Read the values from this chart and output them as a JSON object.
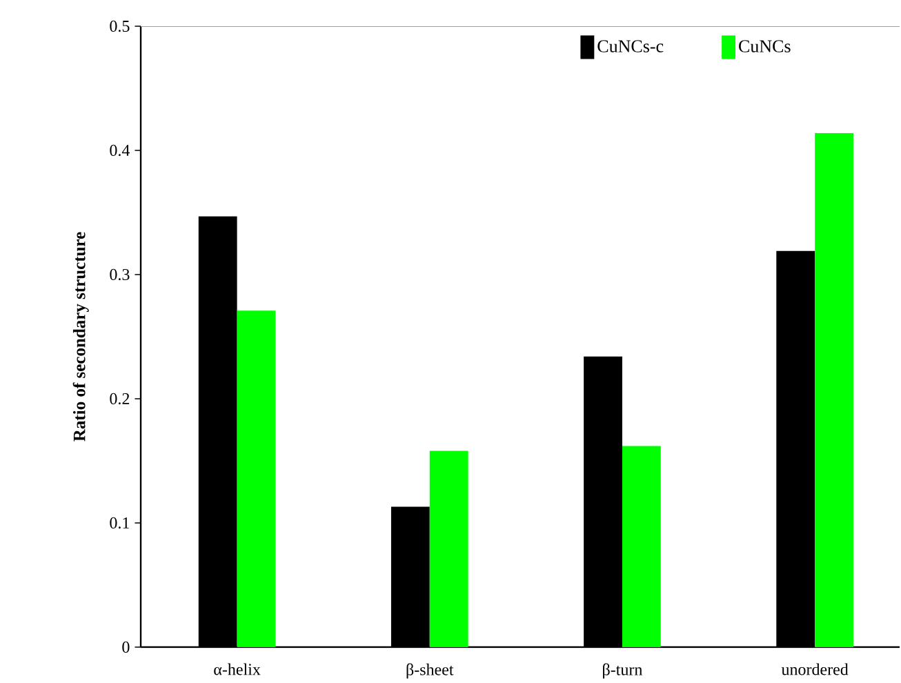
{
  "chart_data": {
    "type": "bar",
    "ylabel": "Ratio of secondary structure",
    "categories": [
      "α-helix",
      "β-sheet",
      "β-turn",
      "unordered"
    ],
    "series": [
      {
        "name": "CuNCs-c",
        "color": "#000000",
        "values": [
          0.347,
          0.113,
          0.234,
          0.319
        ]
      },
      {
        "name": "CuNCs",
        "color": "#00ff00",
        "values": [
          0.271,
          0.158,
          0.162,
          0.414
        ]
      }
    ],
    "ylim": [
      0,
      0.5
    ],
    "yticks": [
      0,
      0.1,
      0.2,
      0.3,
      0.4,
      0.5
    ],
    "grid": false,
    "legend": "top"
  }
}
